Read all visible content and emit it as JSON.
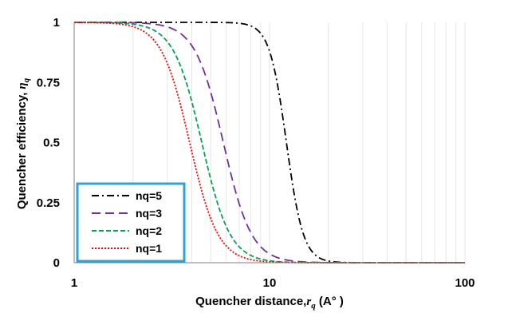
{
  "chart_data": {
    "type": "line",
    "title": "",
    "xlabel": "Quencher distance,",
    "xlabel_symbol": "r",
    "xlabel_subscript": "q",
    "xlabel_unit": " (A° )",
    "ylabel": "Quencher efficiency, ",
    "ylabel_symbol": "η",
    "ylabel_subscript": "q",
    "x_scale": "log",
    "xlim": [
      1,
      100
    ],
    "ylim": [
      0,
      1
    ],
    "x_ticks": [
      "1",
      "10",
      "100"
    ],
    "y_ticks": [
      "0",
      "0.25",
      "0.5",
      "0.75",
      "1"
    ],
    "grid": "vertical minor gridlines",
    "legend_position": "bottom-left",
    "series": [
      {
        "name": "nq=5",
        "color": "#000000",
        "style": "dash-dot",
        "R0": 12.2,
        "exponent": 10,
        "x": [
          1,
          2,
          4,
          6,
          8,
          10,
          12,
          14,
          16,
          20,
          30,
          100
        ],
        "y": [
          1.0,
          1.0,
          1.0,
          0.999,
          0.986,
          0.88,
          0.52,
          0.18,
          0.06,
          0.007,
          0.0001,
          0.0
        ]
      },
      {
        "name": "nq=3",
        "color": "#7030A0",
        "style": "long-dash",
        "R0": 5.8,
        "exponent": 6,
        "x": [
          1,
          2,
          3,
          4,
          5,
          6,
          7,
          8,
          10,
          15,
          100
        ],
        "y": [
          1.0,
          0.998,
          0.981,
          0.9,
          0.71,
          0.45,
          0.24,
          0.12,
          0.035,
          0.003,
          0.0
        ]
      },
      {
        "name": "nq=2",
        "color": "#00A651",
        "style": "short-dash",
        "R0": 4.5,
        "exponent": 6,
        "x": [
          1,
          2,
          3,
          4,
          4.5,
          5,
          6,
          8,
          10,
          100
        ],
        "y": [
          1.0,
          0.993,
          0.92,
          0.67,
          0.5,
          0.35,
          0.15,
          0.03,
          0.008,
          0.0
        ]
      },
      {
        "name": "nq=1",
        "color": "#FF0000",
        "style": "dotted",
        "R0": 3.9,
        "exponent": 6,
        "x": [
          1,
          2,
          3,
          3.9,
          4.5,
          5,
          6,
          8,
          10,
          100
        ],
        "y": [
          1.0,
          0.98,
          0.83,
          0.5,
          0.3,
          0.18,
          0.07,
          0.01,
          0.003,
          0.0
        ]
      }
    ]
  }
}
